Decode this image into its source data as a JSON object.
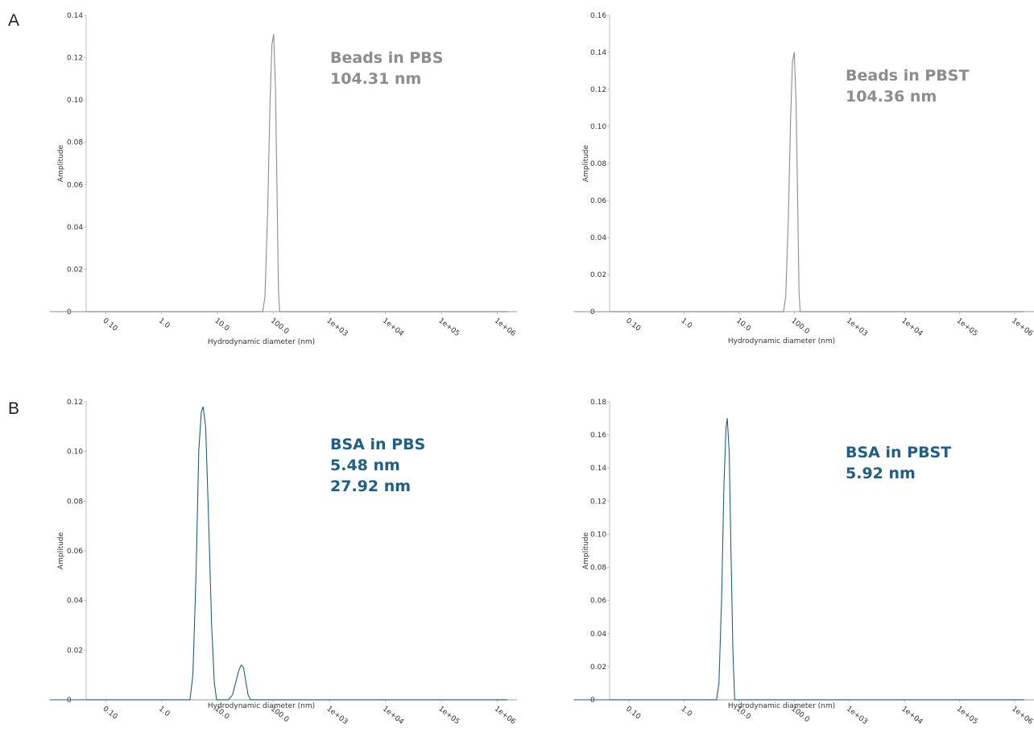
{
  "row_labels": [
    "A",
    "B"
  ],
  "chart_data": [
    {
      "type": "line",
      "panel": "A",
      "xlabel": "Hydrodynamic diameter (nm)",
      "ylabel": "Amplitude",
      "xscale": "log",
      "xticks": [
        "0.10",
        "1.0",
        "10.0",
        "100.0",
        "1e+03",
        "1e+04",
        "1e+05",
        "1e+06"
      ],
      "ylim": [
        0,
        0.14
      ],
      "yticks": [
        "0",
        "0.02",
        "0.04",
        "0.06",
        "0.08",
        "0.10",
        "0.12",
        "0.14"
      ],
      "color": "#8c8c8c",
      "annotation": [
        "Beads in PBS",
        "104.31 nm"
      ],
      "series": [
        {
          "x": [
            0.01,
            64,
            70,
            78,
            86,
            93,
            100,
            108,
            116,
            122,
            128,
            1500000
          ],
          "y": [
            0,
            0,
            0.007,
            0.046,
            0.097,
            0.126,
            0.131,
            0.105,
            0.052,
            0.01,
            0,
            0
          ]
        }
      ]
    },
    {
      "type": "line",
      "panel": "A",
      "xlabel": "Hydrodynamic diameter (nm)",
      "ylabel": "Amplitude",
      "xscale": "log",
      "xticks": [
        "0.10",
        "1.0",
        "10.0",
        "100.0",
        "1e+03",
        "1e+04",
        "1e+05",
        "1e+06"
      ],
      "ylim": [
        0,
        0.16
      ],
      "yticks": [
        "0",
        "0.02",
        "0.04",
        "0.06",
        "0.08",
        "0.10",
        "0.12",
        "0.14",
        "0.16"
      ],
      "color": "#8c8c8c",
      "annotation": [
        "Beads in PBST",
        "104.36 nm"
      ],
      "series": [
        {
          "x": [
            0.01,
            64,
            70,
            78,
            86,
            93,
            100,
            108,
            116,
            122,
            128,
            1500000
          ],
          "y": [
            0,
            0,
            0.008,
            0.05,
            0.105,
            0.135,
            0.14,
            0.112,
            0.055,
            0.011,
            0,
            0
          ]
        }
      ]
    },
    {
      "type": "line",
      "panel": "B",
      "xlabel": "Hydrodynamic diameter (nm)",
      "ylabel": "Amplitude",
      "xscale": "log",
      "xticks": [
        "0.10",
        "1.0",
        "10.0",
        "100.0",
        "1e+03",
        "1e+04",
        "1e+05",
        "1e+06"
      ],
      "ylim": [
        0,
        0.12
      ],
      "yticks": [
        "0",
        "0.02",
        "0.04",
        "0.06",
        "0.08",
        "0.10",
        "0.12"
      ],
      "color": "#1f5f86",
      "annotation": [
        "BSA in PBS",
        "5.48 nm",
        "27.92 nm"
      ],
      "series": [
        {
          "x": [
            0.01,
            3.2,
            3.6,
            4.1,
            4.6,
            5.1,
            5.5,
            6.1,
            6.9,
            7.8,
            8.7,
            9.6,
            15.5,
            18.5,
            21,
            24,
            26.5,
            29,
            31.5,
            35,
            38.5,
            1500000
          ],
          "y": [
            0,
            0,
            0.01,
            0.05,
            0.1,
            0.116,
            0.118,
            0.11,
            0.072,
            0.03,
            0.007,
            0,
            0,
            0.002,
            0.007,
            0.012,
            0.014,
            0.013,
            0.008,
            0.002,
            0,
            0
          ]
        }
      ]
    },
    {
      "type": "line",
      "panel": "B",
      "xlabel": "Hydrodynamic diameter (nm)",
      "ylabel": "Amplitude",
      "xscale": "log",
      "xticks": [
        "0.10",
        "1.0",
        "10.0",
        "100.0",
        "1e+03",
        "1e+04",
        "1e+05",
        "1e+06"
      ],
      "ylim": [
        0,
        0.18
      ],
      "yticks": [
        "0",
        "0.02",
        "0.04",
        "0.06",
        "0.08",
        "0.10",
        "0.12",
        "0.14",
        "0.16",
        "0.18"
      ],
      "color": "#1f5f86",
      "annotation": [
        "BSA in PBST",
        "5.92 nm"
      ],
      "series": [
        {
          "x": [
            0.01,
            3.9,
            4.3,
            4.8,
            5.3,
            5.8,
            6.1,
            6.6,
            7.1,
            7.7,
            8.3,
            1500000
          ],
          "y": [
            0,
            0,
            0.01,
            0.06,
            0.13,
            0.165,
            0.17,
            0.15,
            0.09,
            0.03,
            0,
            0
          ]
        }
      ]
    }
  ]
}
